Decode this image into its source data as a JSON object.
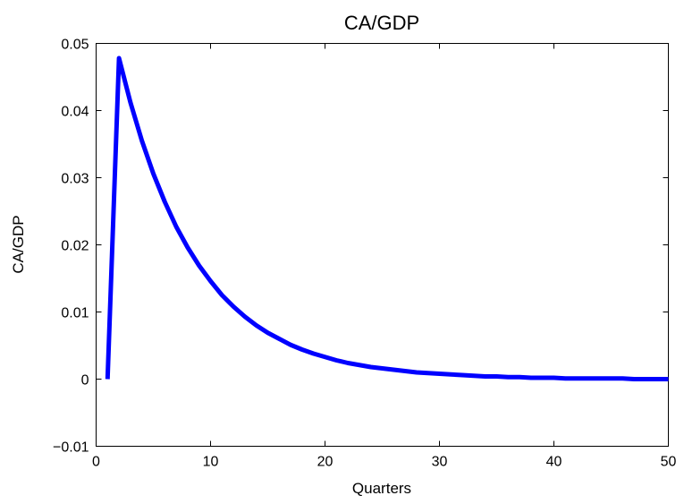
{
  "chart_data": {
    "type": "line",
    "title": "CA/GDP",
    "xlabel": "Quarters",
    "ylabel": "CA/GDP",
    "xlim": [
      0,
      50
    ],
    "ylim": [
      -0.01,
      0.05
    ],
    "x_ticks": [
      0,
      10,
      20,
      30,
      40,
      50
    ],
    "x_tick_labels": [
      "0",
      "10",
      "20",
      "30",
      "40",
      "50"
    ],
    "y_ticks": [
      -0.01,
      0,
      0.01,
      0.02,
      0.03,
      0.04,
      0.05
    ],
    "y_tick_labels": [
      "−0.01",
      "0",
      "0.01",
      "0.02",
      "0.03",
      "0.04",
      "0.05"
    ],
    "grid": false,
    "series": [
      {
        "color": "#0000ff",
        "x": [
          1,
          2,
          3,
          4,
          5,
          6,
          7,
          8,
          9,
          10,
          11,
          12,
          13,
          14,
          15,
          16,
          17,
          18,
          19,
          20,
          21,
          22,
          23,
          24,
          25,
          26,
          27,
          28,
          29,
          30,
          31,
          32,
          33,
          34,
          35,
          36,
          37,
          38,
          39,
          40,
          41,
          42,
          43,
          44,
          45,
          46,
          47,
          48,
          49,
          50
        ],
        "y": [
          0.0,
          0.0478,
          0.0412,
          0.0355,
          0.0306,
          0.0264,
          0.0227,
          0.0196,
          0.0169,
          0.0146,
          0.0125,
          0.0108,
          0.0093,
          0.008,
          0.0069,
          0.006,
          0.0051,
          0.0044,
          0.0038,
          0.0033,
          0.0028,
          0.0024,
          0.0021,
          0.0018,
          0.0016,
          0.0014,
          0.0012,
          0.001,
          0.0009,
          0.0008,
          0.0007,
          0.0006,
          0.0005,
          0.0004,
          0.0004,
          0.0003,
          0.0003,
          0.0002,
          0.0002,
          0.0002,
          0.0001,
          0.0001,
          0.0001,
          0.0001,
          0.0001,
          0.0001,
          0.0,
          0.0,
          0.0,
          0.0
        ]
      }
    ]
  }
}
